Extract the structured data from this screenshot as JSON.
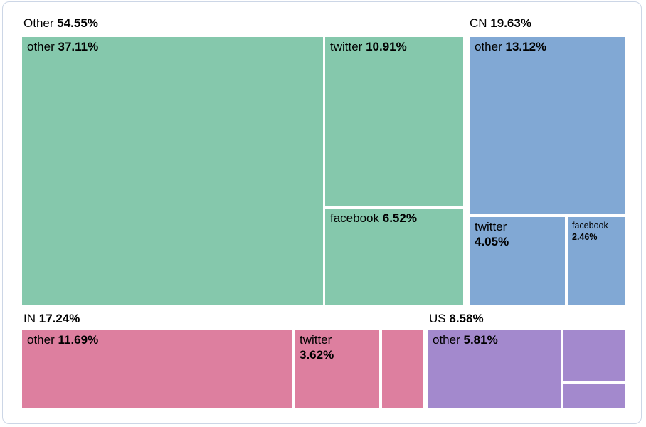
{
  "chart_data": {
    "type": "treemap",
    "title": "",
    "unit": "%",
    "layout_hint": "two rows of country groups, labels top-left inside cells, group header above each group",
    "groups": [
      {
        "name": "Other",
        "value": 54.55,
        "value_label": "54.55%",
        "color": "#85c8ac",
        "children": [
          {
            "name": "other",
            "value": 37.11,
            "value_label": "37.11%"
          },
          {
            "name": "twitter",
            "value": 10.91,
            "value_label": "10.91%"
          },
          {
            "name": "facebook",
            "value": 6.52,
            "value_label": "6.52%"
          }
        ]
      },
      {
        "name": "CN",
        "value": 19.63,
        "value_label": "19.63%",
        "color": "#81a8d4",
        "children": [
          {
            "name": "other",
            "value": 13.12,
            "value_label": "13.12%"
          },
          {
            "name": "twitter",
            "value": 4.05,
            "value_label": "4.05%"
          },
          {
            "name": "facebook",
            "value": 2.46,
            "value_label": "2.46%"
          }
        ]
      },
      {
        "name": "IN",
        "value": 17.24,
        "value_label": "17.24%",
        "color": "#dd7f9f",
        "children": [
          {
            "name": "other",
            "value": 11.69,
            "value_label": "11.69%"
          },
          {
            "name": "twitter",
            "value": 3.62,
            "value_label": "3.62%"
          },
          {
            "name": "",
            "value_label": ""
          }
        ]
      },
      {
        "name": "US",
        "value": 8.58,
        "value_label": "8.58%",
        "color": "#a389cd",
        "children": [
          {
            "name": "other",
            "value": 5.81,
            "value_label": "5.81%"
          },
          {
            "name": "",
            "value_label": ""
          },
          {
            "name": "",
            "value_label": ""
          }
        ]
      }
    ]
  },
  "colors": {
    "background": "#ffffff",
    "card_border": "#ccd6e6",
    "text": "#000000",
    "group_other": "#85c8ac",
    "group_cn": "#81a8d4",
    "group_in": "#dd7f9f",
    "group_us": "#a389cd"
  }
}
